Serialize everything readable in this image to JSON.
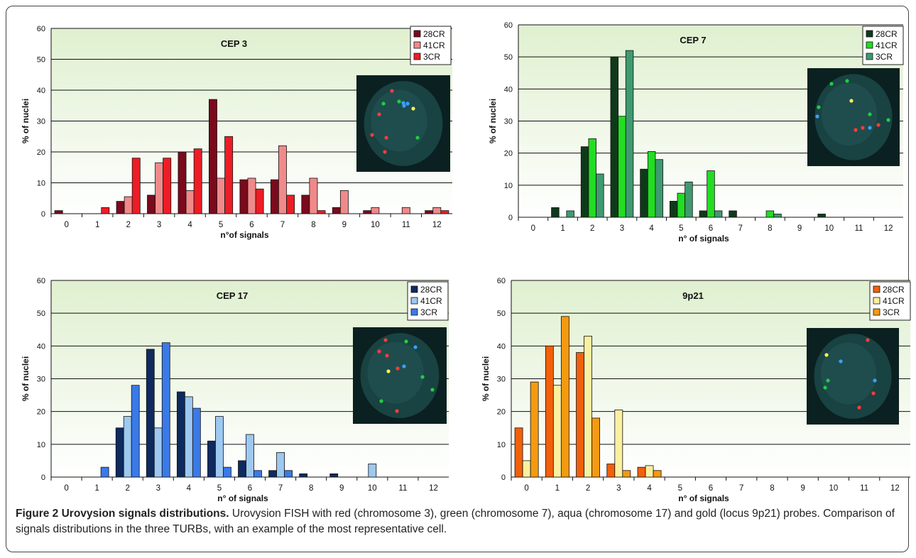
{
  "chart_data": [
    {
      "type": "bar",
      "title": "CEP 3",
      "xlabel": "n°of signals",
      "ylabel": "% of nuclei",
      "ylim": [
        0,
        60
      ],
      "yticks": [
        0,
        10,
        20,
        30,
        40,
        50,
        60
      ],
      "categories": [
        "0",
        "1",
        "2",
        "3",
        "4",
        "5",
        "6",
        "7",
        "8",
        "9",
        "10",
        "11",
        "12"
      ],
      "legend": "top-right",
      "grid": true,
      "series": [
        {
          "name": "28CR",
          "color": "#7a0a1c",
          "values": [
            1,
            0,
            4,
            6,
            20,
            37,
            11,
            11,
            6,
            2,
            1,
            0,
            1
          ]
        },
        {
          "name": "41CR",
          "color": "#f08a8a",
          "values": [
            0,
            0,
            5.5,
            16.5,
            7.5,
            11.5,
            11.5,
            22,
            11.5,
            7.5,
            2,
            2,
            2
          ]
        },
        {
          "name": "3CR",
          "color": "#ee1c25",
          "values": [
            0,
            2,
            18,
            18,
            21,
            25,
            8,
            6,
            1,
            0,
            0,
            0,
            1
          ]
        }
      ]
    },
    {
      "type": "bar",
      "title": "CEP 7",
      "xlabel": "n° of signals",
      "ylabel": "% of nuclei",
      "ylim": [
        0,
        60
      ],
      "yticks": [
        0,
        10,
        20,
        30,
        40,
        50,
        60
      ],
      "categories": [
        "0",
        "1",
        "2",
        "3",
        "4",
        "5",
        "6",
        "7",
        "8",
        "9",
        "10",
        "11",
        "12"
      ],
      "legend": "top-right",
      "grid": true,
      "series": [
        {
          "name": "28CR",
          "color": "#0f3a1a",
          "values": [
            0,
            3,
            22,
            50,
            15,
            5,
            2,
            2,
            0,
            0,
            1,
            0,
            0
          ]
        },
        {
          "name": "41CR",
          "color": "#22dd22",
          "values": [
            0,
            0,
            24.5,
            31.5,
            20.5,
            7.5,
            14.5,
            0,
            2,
            0,
            0,
            0,
            0
          ]
        },
        {
          "name": "3CR",
          "color": "#3f9a70",
          "values": [
            0,
            2,
            13.5,
            52,
            18,
            11,
            2,
            0,
            1,
            0,
            0,
            0,
            0
          ]
        }
      ]
    },
    {
      "type": "bar",
      "title": "CEP 17",
      "xlabel": "n° of signals",
      "ylabel": "% of nuclei",
      "ylim": [
        0,
        60
      ],
      "yticks": [
        0,
        10,
        20,
        30,
        40,
        50,
        60
      ],
      "categories": [
        "0",
        "1",
        "2",
        "3",
        "4",
        "5",
        "6",
        "7",
        "8",
        "9",
        "10",
        "11",
        "12"
      ],
      "legend": "top-right",
      "grid": true,
      "series": [
        {
          "name": "28CR",
          "color": "#0e2a5e",
          "values": [
            0,
            0,
            15,
            39,
            26,
            11,
            5,
            2,
            1,
            1,
            0,
            0,
            0
          ]
        },
        {
          "name": "41CR",
          "color": "#9dc8f0",
          "values": [
            0,
            0,
            18.5,
            15,
            24.5,
            18.5,
            13,
            7.5,
            0,
            0,
            4,
            0,
            0
          ]
        },
        {
          "name": "3CR",
          "color": "#3a7ae8",
          "values": [
            0,
            3,
            28,
            41,
            21,
            3,
            2,
            2,
            0,
            0,
            0,
            0,
            0
          ]
        }
      ]
    },
    {
      "type": "bar",
      "title": "9p21",
      "xlabel": "n° of signals",
      "ylabel": "% of nuclei",
      "ylim": [
        0,
        60
      ],
      "yticks": [
        0,
        10,
        20,
        30,
        40,
        50,
        60
      ],
      "categories": [
        "0",
        "1",
        "2",
        "3",
        "4",
        "5",
        "6",
        "7",
        "8",
        "9",
        "10",
        "11",
        "12"
      ],
      "legend": "top-right",
      "grid": true,
      "series": [
        {
          "name": "28CR",
          "color": "#f2600a",
          "values": [
            15,
            40,
            38,
            4,
            3,
            0,
            0,
            0,
            0,
            0,
            0,
            0,
            0
          ]
        },
        {
          "name": "41CR",
          "color": "#fbf0a0",
          "values": [
            5,
            28,
            43,
            20.5,
            3.5,
            0,
            0,
            0,
            0,
            0,
            0,
            0,
            0
          ]
        },
        {
          "name": "3CR",
          "color": "#f59a10",
          "values": [
            29,
            49,
            18,
            2,
            2,
            0,
            0,
            0,
            0,
            0,
            0,
            0,
            0
          ]
        }
      ]
    }
  ],
  "caption": {
    "title": "Figure 2 Urovysion signals distributions.",
    "text": "Urovysion FISH with red (chromosome 3), green (chromosome 7), aqua (chromosome 17) and gold (locus 9p21) probes. Comparison of signals distributions in the three TURBs, with an example of the most representative cell."
  }
}
